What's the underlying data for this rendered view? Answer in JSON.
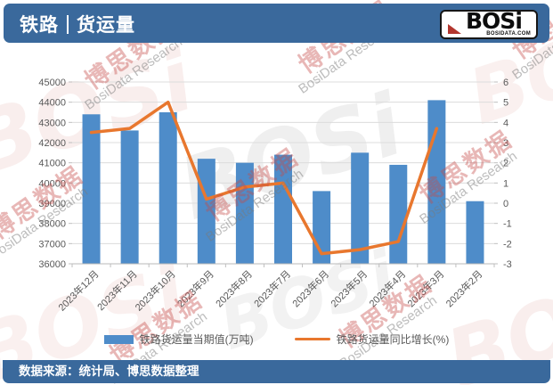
{
  "header": {
    "title_left": "铁路",
    "title_right": "货运量",
    "logo_text": "BOSi",
    "logo_subtext": "BOSIDATA.COM"
  },
  "chart_data": {
    "type": "combo",
    "categories": [
      "2023年12月",
      "2023年11月",
      "2023年10月",
      "2023年9月",
      "2023年8月",
      "2023年7月",
      "2023年6月",
      "2023年5月",
      "2023年4月",
      "2023年3月",
      "2023年2月"
    ],
    "series": [
      {
        "name": "铁路货运量当期值(万吨)",
        "type": "bar",
        "yaxis": "left",
        "color": "#4E8CC9",
        "values": [
          43400,
          42600,
          43500,
          41200,
          41000,
          41400,
          39600,
          41500,
          40900,
          44100,
          39100
        ]
      },
      {
        "name": "铁路货运量同比增长(%)",
        "type": "line",
        "yaxis": "right",
        "color": "#E8772E",
        "values": [
          3.5,
          3.7,
          5.0,
          0.2,
          0.8,
          1.0,
          -2.5,
          -2.3,
          -1.9,
          3.7,
          null
        ]
      }
    ],
    "left_axis": {
      "min": 36000,
      "max": 45000,
      "step": 1000,
      "tick_labels": [
        "45000",
        "44000",
        "43000",
        "42000",
        "41000",
        "40000",
        "39000",
        "38000",
        "37000",
        "36000"
      ]
    },
    "right_axis": {
      "min": -3,
      "max": 6,
      "step": 1,
      "tick_labels": [
        "6",
        "5",
        "4",
        "3",
        "2",
        "1",
        "0",
        "-1",
        "-2",
        "-3"
      ]
    },
    "grid": true,
    "legend_position": "bottom"
  },
  "footer": {
    "source_text": "数据来源：统计局、博思数据整理"
  },
  "watermark": {
    "cn": "博思数据",
    "en": "BosiData Research",
    "logo": "BOSi"
  },
  "colors": {
    "header_bg": "#3A699C",
    "footer_bg": "#3A699C",
    "bar": "#4E8CC9",
    "line": "#E8772E",
    "gridline": "#DCDCDC",
    "axis_text": "#595959"
  }
}
